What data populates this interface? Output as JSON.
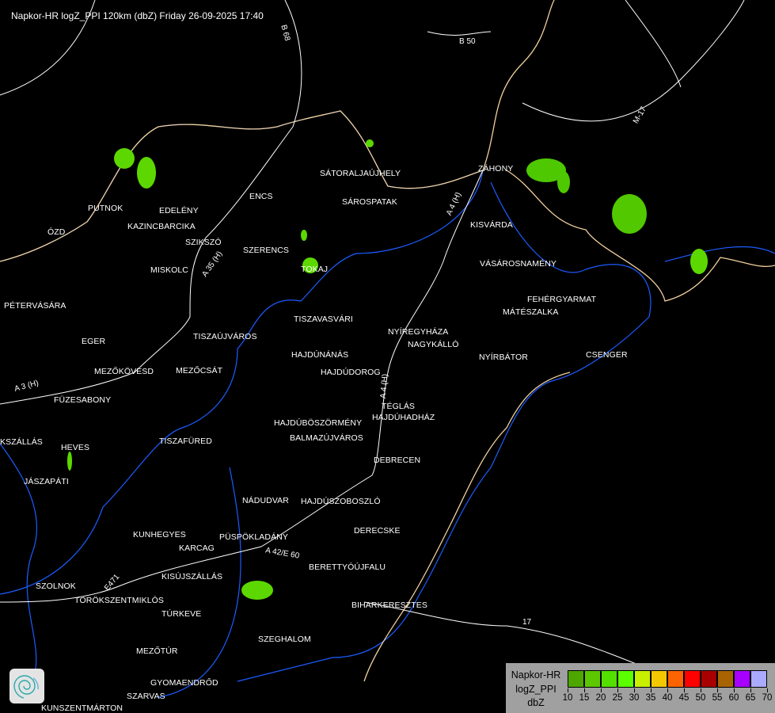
{
  "title": "Napkor-HR logZ_PPI 120km (dbZ) Friday 26-09-2025 17:40",
  "cities": [
    "SÁTORALJAÚJHELY",
    "SÁROSPATAK",
    "ENCS",
    "PUTNOK",
    "EDELÉNY",
    "KAZINCBARCIKA",
    "ÓZD",
    "SZIKSZÓ",
    "SZERENCS",
    "TOKAJ",
    "MISKOLC",
    "PÉTERVÁSÁRA",
    "TISZAVASVÁRI",
    "NYÍREGYHÁZA",
    "NAGYKÁLLÓ",
    "EGER",
    "TISZAÚJVÁROS",
    "HAJDÚNÁNÁS",
    "HAJDÚDOROG",
    "MEZŐKÖVESD",
    "MEZŐCSÁT",
    "FÜZESABONY",
    "TÉGLÁS",
    "HAJDÚBÖSZÖRMÉNY",
    "HAJDÚHADHÁZ",
    "ZÁHONY",
    "KISVÁRDA",
    "VÁSÁROSNAMÉNY",
    "FEHÉRGYARMAT",
    "MÁTÉSZALKA",
    "NYÍRBÁTOR",
    "CSENGER",
    "KSZÁLLÁS",
    "HEVES",
    "TISZAFÜRED",
    "JÁSZAPÁTI",
    "BALMAZÚJVÁROS",
    "DEBRECEN",
    "NÁDUDVAR",
    "HAJDÚSZOBOSZLÓ",
    "DERECSKE",
    "KUNHEGYES",
    "KARCAG",
    "PÜSPÖKLADÁNY",
    "BERETTYÓÚJFALU",
    "KISÚJSZÁLLÁS",
    "SZOLNOK",
    "TÖRÖKSZENTMIKLÓS",
    "BIHARKERESZTES",
    "TÚRKEVE",
    "SZEGHALOM",
    "MEZŐTÚR",
    "GYOMAENDRŐD",
    "SZARVAS",
    "KUNSZENTMÁRTON"
  ],
  "roads": [
    "B 68",
    "B 50",
    "M-17",
    "A 3 (H)",
    "A 4 (H)",
    "A 35 (H)",
    "A 4 (H)",
    "A 42/E 60",
    "E471",
    "17"
  ],
  "legend": {
    "lines": [
      "Napkor-HR",
      "logZ_PPI",
      "dbZ"
    ],
    "ticks": [
      "10",
      "15",
      "20",
      "25",
      "30",
      "35",
      "40",
      "45",
      "50",
      "55",
      "60",
      "65",
      "70"
    ],
    "colors": [
      "#4ea600",
      "#5cc800",
      "#53e000",
      "#5cff00",
      "#c8f000",
      "#f4c800",
      "#fb6400",
      "#ff0000",
      "#a80000",
      "#a86400",
      "#a800ff",
      "#aaaaff"
    ]
  },
  "logo": "radar-swirl-logo",
  "colors": {
    "background": "#000000",
    "border": "#f0d09c",
    "river": "#1c5cff",
    "road": "#ffffff",
    "echo": "#5cd800"
  }
}
